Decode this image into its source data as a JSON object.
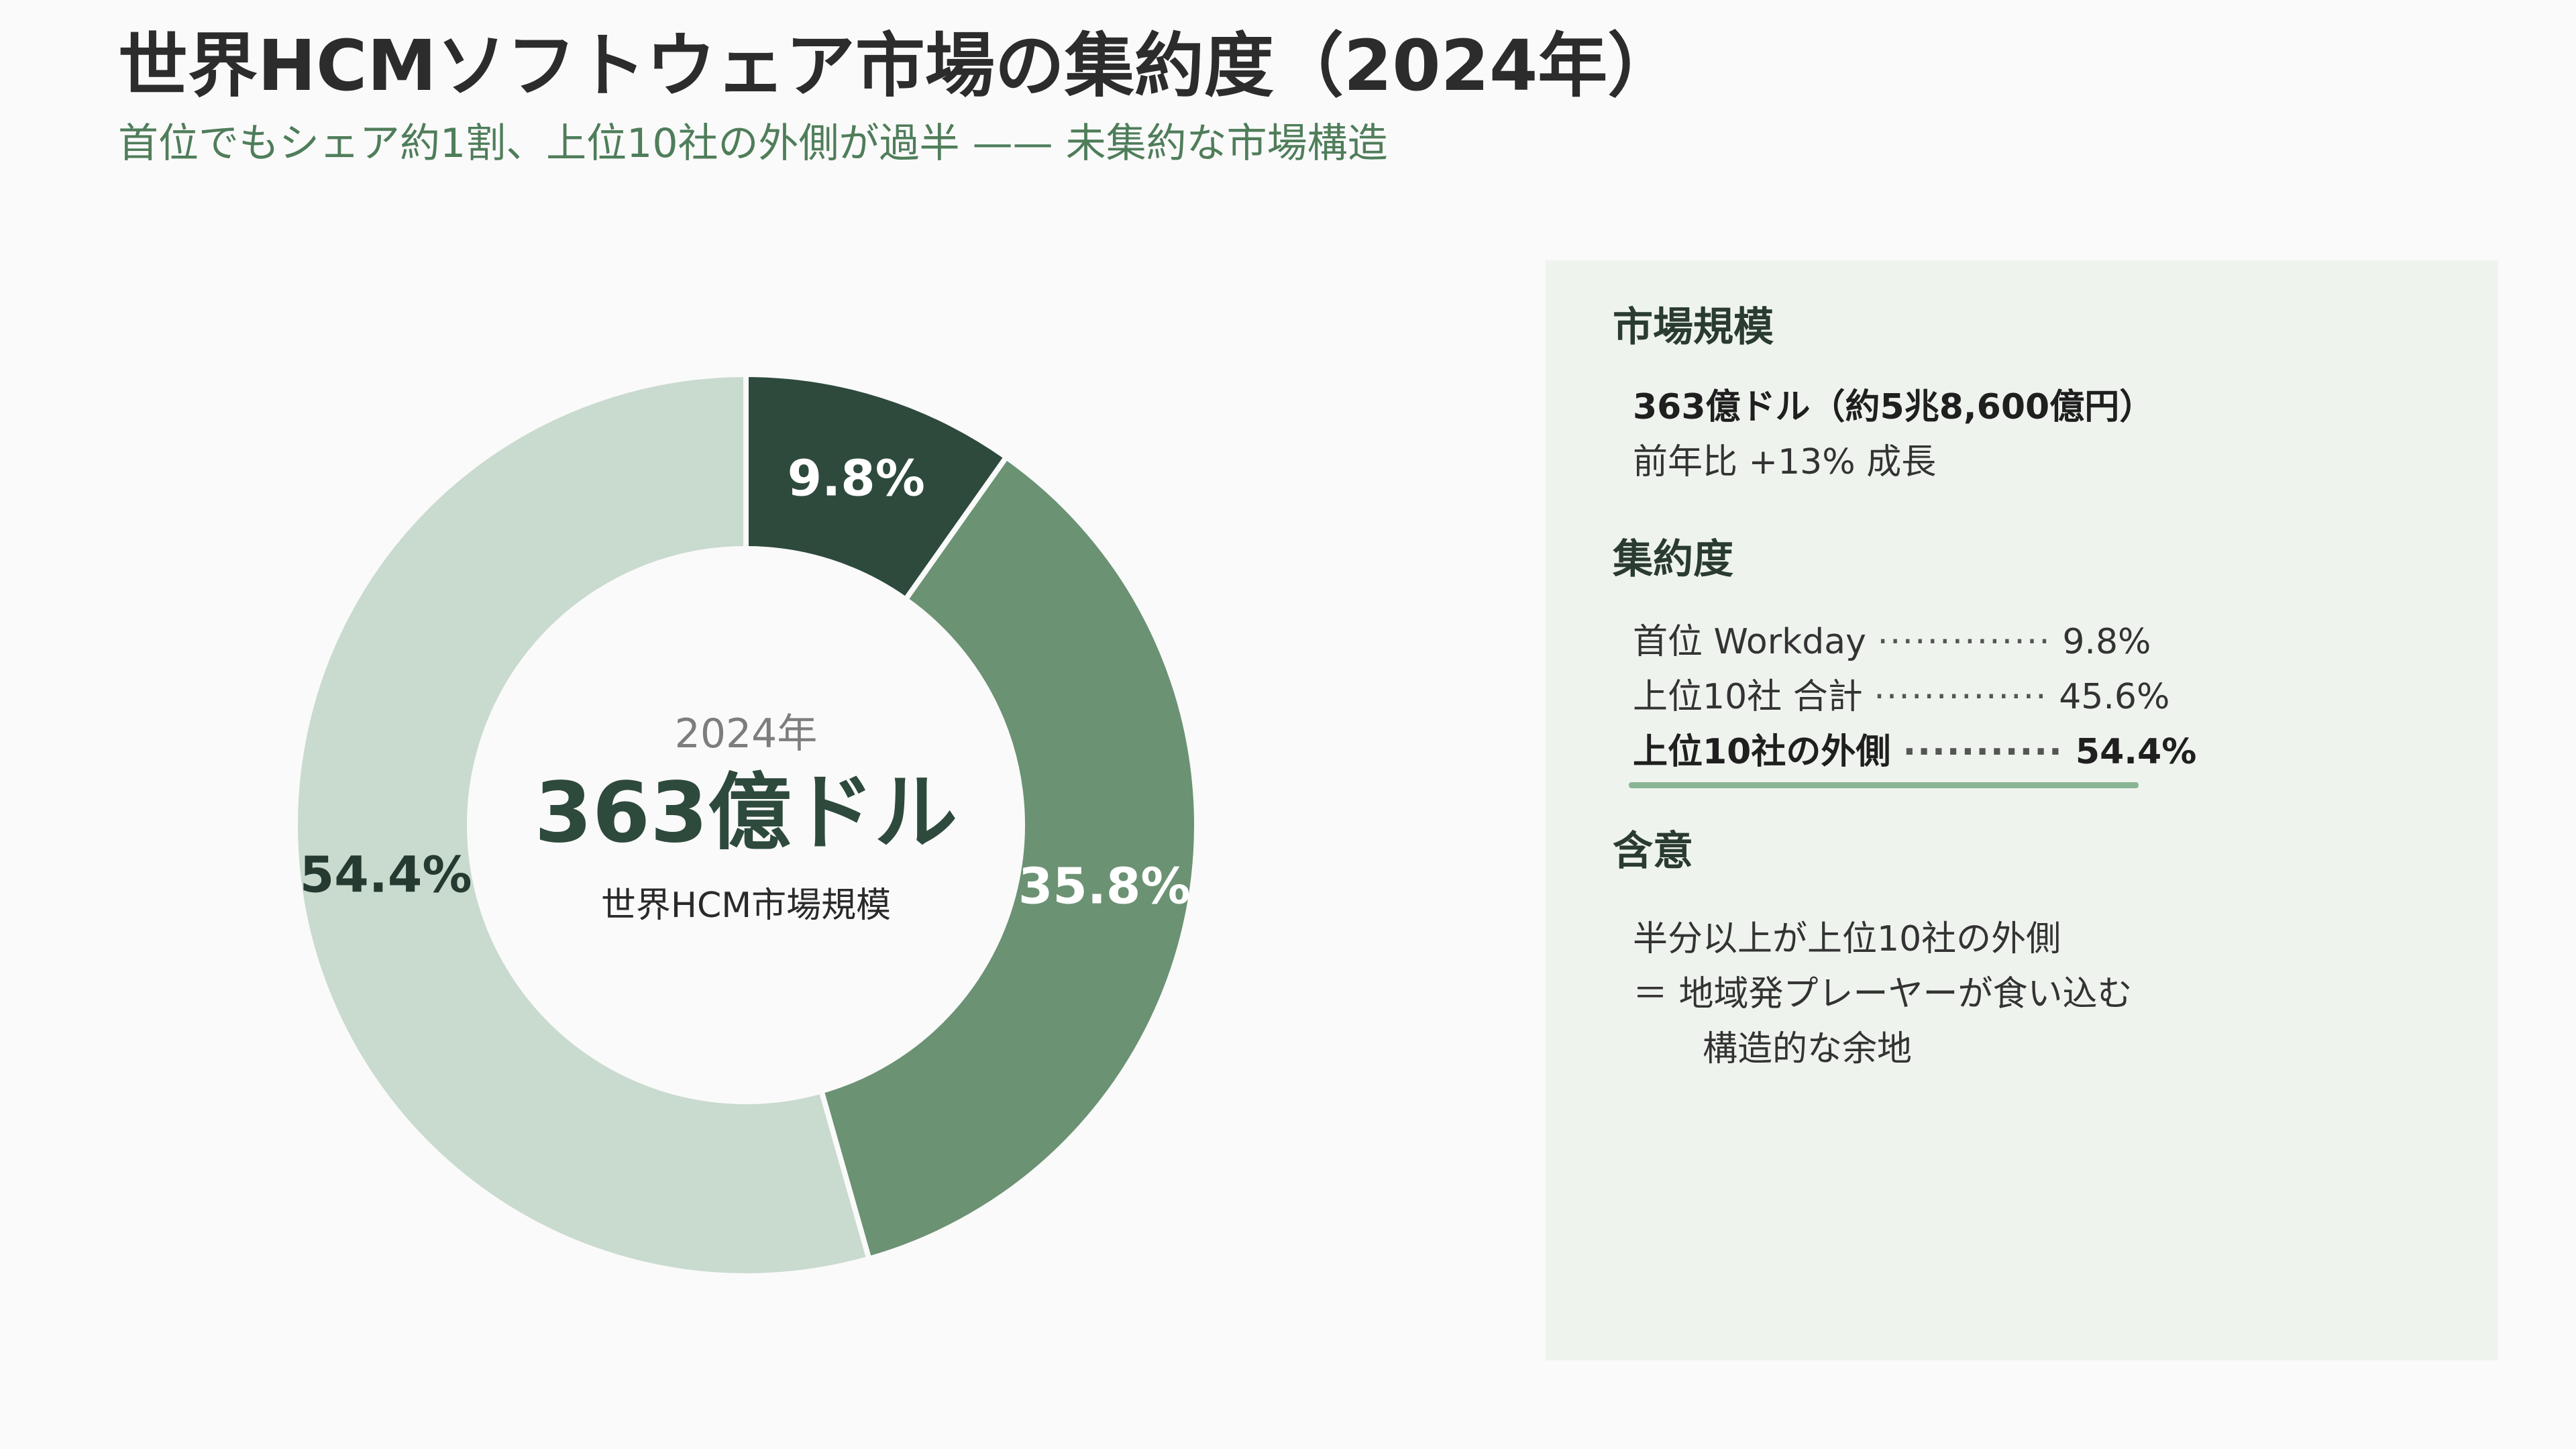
{
  "title": "世界HCMソフトウェア市場の集約度（2024年）",
  "subtitle": "首位でもシェア約1割、上位10社の外側が過半 —— 未集約な市場構造",
  "chart_data": {
    "type": "pie",
    "style": "donut",
    "title": "世界HCMソフトウェア市場の集約度（2024年）",
    "categories": [
      "",
      "",
      ""
    ],
    "values": [
      9.8,
      35.8,
      54.4
    ],
    "value_labels": [
      "9.8%",
      "35.8%",
      "54.4%"
    ],
    "unit": "%",
    "colors": [
      "#2d4a3d",
      "#6b9273",
      "#c9dace"
    ],
    "label_colors": [
      "#ffffff",
      "#ffffff",
      "#253a30"
    ],
    "start_angle_deg": 0,
    "direction": "clockwise",
    "legend": "none",
    "center": {
      "year": "2024年",
      "value": "363億ドル",
      "label": "世界HCM市場規模"
    }
  },
  "panel": {
    "market_size": {
      "heading": "市場規模",
      "amount": "363億ドル（約5兆8,600億円）",
      "growth": "前年比  +13% 成長"
    },
    "concentration": {
      "heading": "集約度",
      "rows": [
        {
          "label": "首位 Workday",
          "dots": "··············",
          "value": "9.8%"
        },
        {
          "label": "上位10社 合計",
          "dots": "··············",
          "value": "45.6%"
        },
        {
          "label": "上位10社の外側",
          "dots": "···········",
          "value": "54.4%"
        }
      ]
    },
    "implication": {
      "heading": "含意",
      "line1": "半分以上が上位10社の外側",
      "line2": "＝ 地域発プレーヤーが食い込む",
      "line3": "構造的な余地"
    }
  }
}
